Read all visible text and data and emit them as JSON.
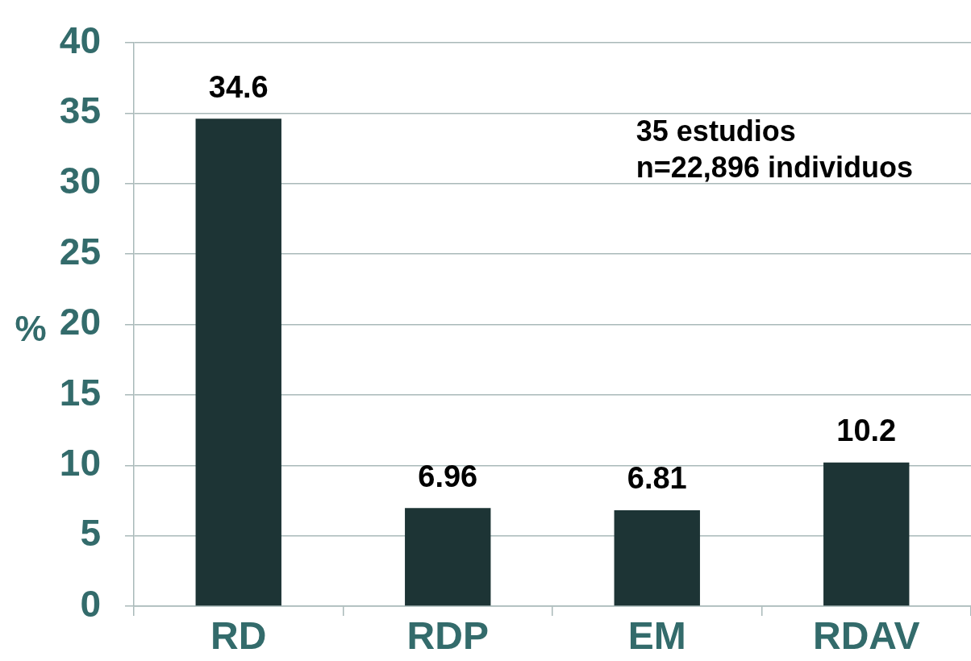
{
  "chart_data": {
    "type": "bar",
    "ylabel": "%",
    "categories": [
      "RD",
      "RDP",
      "EM",
      "RDAV"
    ],
    "values": [
      34.6,
      6.96,
      6.81,
      10.2
    ],
    "color": "#1d3435",
    "ylim": [
      0,
      40
    ],
    "yticks": [
      0,
      5,
      10,
      15,
      20,
      25,
      30,
      35,
      40
    ],
    "grid": "y",
    "data_labels": true,
    "annotations": [
      "35 estudios",
      "n=22,896 individuos"
    ]
  }
}
